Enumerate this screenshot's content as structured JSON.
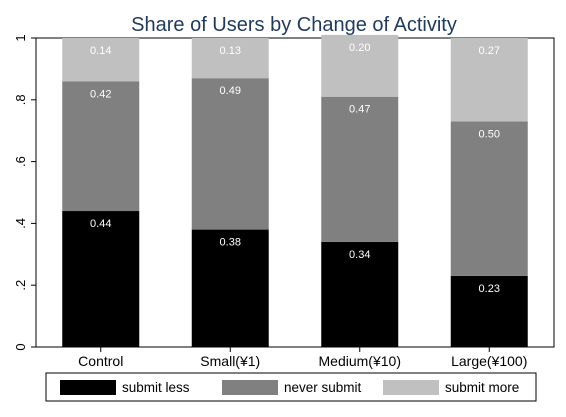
{
  "chart_data": {
    "type": "bar",
    "stacked": true,
    "title": "Share of Users by Change of Activity",
    "categories": [
      "Control",
      "Small(¥1)",
      "Medium(¥10)",
      "Large(¥100)"
    ],
    "series": [
      {
        "name": "submit less",
        "values": [
          0.44,
          0.38,
          0.34,
          0.23
        ],
        "labels": [
          "0.44",
          "0.38",
          "0.34",
          "0.23"
        ],
        "color": "#000000"
      },
      {
        "name": "never submit",
        "values": [
          0.42,
          0.49,
          0.47,
          0.5
        ],
        "labels": [
          "0.42",
          "0.49",
          "0.47",
          "0.50"
        ],
        "color": "#808080"
      },
      {
        "name": "submit more",
        "values": [
          0.14,
          0.13,
          0.2,
          0.27
        ],
        "labels": [
          "0.14",
          "0.13",
          "0.20",
          "0.27"
        ],
        "color": "#c0c0c0"
      }
    ],
    "ylim": [
      0,
      1
    ],
    "yticks": [
      0,
      0.2,
      0.4,
      0.6,
      0.8,
      1
    ],
    "ytick_labels": [
      "0",
      ".2",
      ".4",
      ".6",
      ".8",
      "1"
    ],
    "grid": false,
    "legend_position": "bottom"
  }
}
